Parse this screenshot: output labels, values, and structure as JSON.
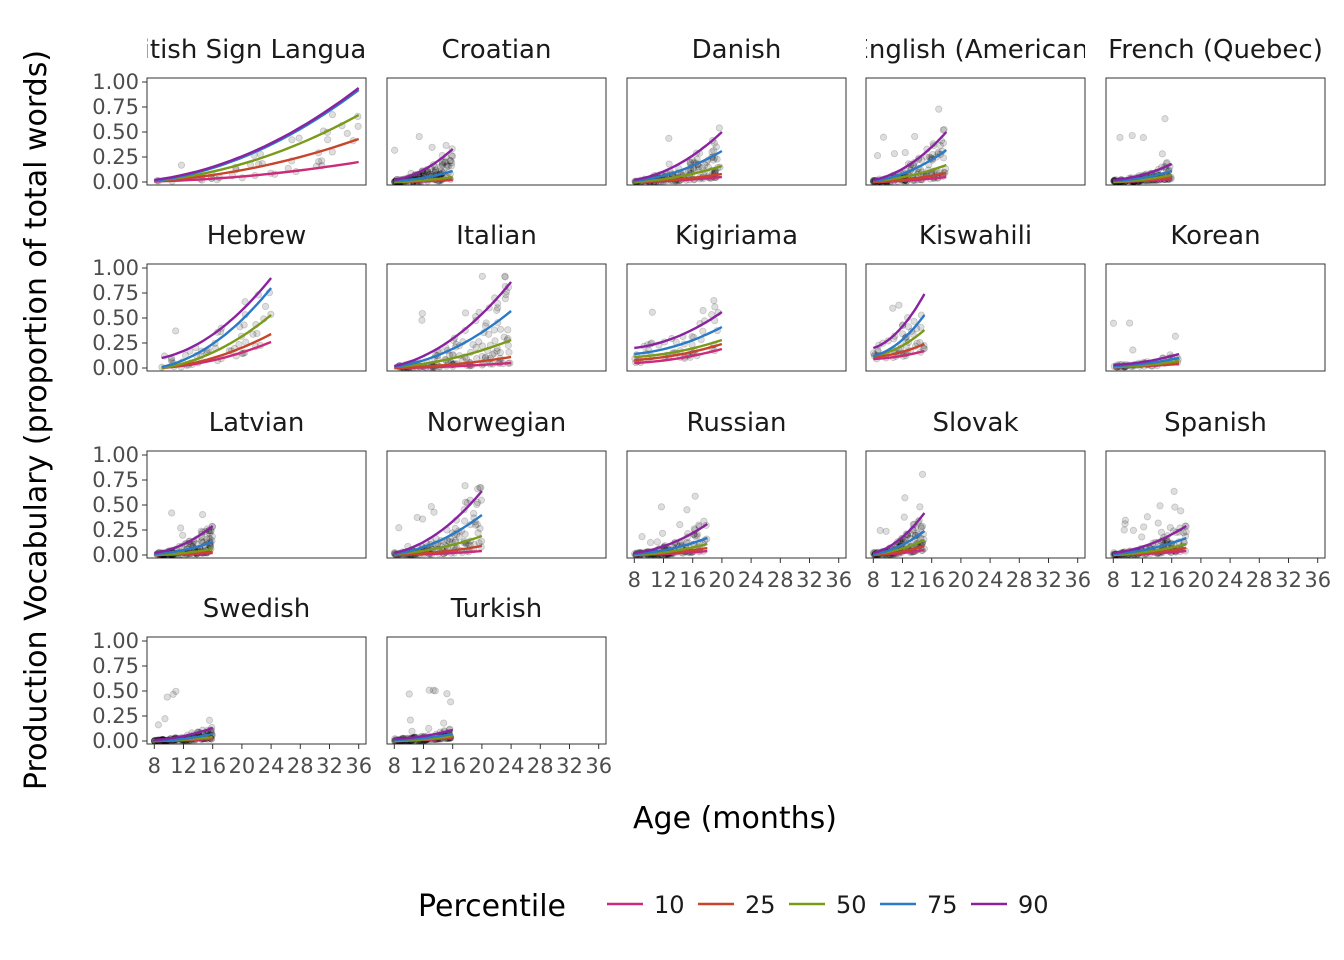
{
  "chart_data": {
    "type": "scatter",
    "xlabel": "Age (months)",
    "ylabel": "Production Vocabulary (proportion of total words)",
    "xlim": [
      7,
      37
    ],
    "ylim": [
      -0.03,
      1.04
    ],
    "x_ticks": [
      8,
      12,
      16,
      20,
      24,
      28,
      32,
      36
    ],
    "x_tick_labels": [
      "8",
      "12",
      "16",
      "20",
      "24",
      "28",
      "32",
      "36"
    ],
    "y_ticks": [
      0,
      0.25,
      0.5,
      0.75,
      1.0
    ],
    "y_tick_labels": [
      "0.00",
      "0.25",
      "0.50",
      "0.75",
      "1.00"
    ],
    "grid": false,
    "legend": {
      "title": "Percentile",
      "position": "bottom",
      "entries": [
        {
          "label": "10",
          "color": "#cc2a7a"
        },
        {
          "label": "25",
          "color": "#c8442a"
        },
        {
          "label": "50",
          "color": "#7a9a1a"
        },
        {
          "label": "75",
          "color": "#2a7ac8"
        },
        {
          "label": "90",
          "color": "#8a22a0"
        }
      ]
    },
    "point_color": "#000000",
    "panels": [
      {
        "title": "British Sign Language",
        "age_range": [
          8,
          36
        ],
        "data_note": "sparse points up to ~0.95",
        "curves": {
          "10": [
            0.005,
            0.2
          ],
          "25": [
            0.01,
            0.43
          ],
          "50": [
            0.01,
            0.67
          ],
          "75": [
            0.01,
            0.92
          ],
          "90": [
            0.02,
            0.94
          ]
        }
      },
      {
        "title": "Croatian",
        "age_range": [
          8,
          16
        ],
        "curves": {
          "10": [
            0.0,
            0.02
          ],
          "25": [
            0.0,
            0.03
          ],
          "50": [
            0.0,
            0.05
          ],
          "75": [
            0.01,
            0.11
          ],
          "90": [
            0.02,
            0.33
          ]
        }
      },
      {
        "title": "Danish",
        "age_range": [
          8,
          20
        ],
        "curves": {
          "10": [
            0.0,
            0.05
          ],
          "25": [
            0.0,
            0.08
          ],
          "50": [
            0.0,
            0.16
          ],
          "75": [
            0.01,
            0.31
          ],
          "90": [
            0.02,
            0.5
          ]
        }
      },
      {
        "title": "English (American)",
        "age_range": [
          8,
          18
        ],
        "curves": {
          "10": [
            0.0,
            0.05
          ],
          "25": [
            0.0,
            0.09
          ],
          "50": [
            0.01,
            0.17
          ],
          "75": [
            0.01,
            0.32
          ],
          "90": [
            0.02,
            0.5
          ]
        }
      },
      {
        "title": "French (Quebec)",
        "age_range": [
          8,
          16
        ],
        "curves": {
          "10": [
            0.0,
            0.03
          ],
          "25": [
            0.0,
            0.05
          ],
          "50": [
            0.0,
            0.07
          ],
          "75": [
            0.01,
            0.11
          ],
          "90": [
            0.02,
            0.18
          ]
        }
      },
      {
        "title": "Hebrew",
        "age_range": [
          9,
          24
        ],
        "curves": {
          "10": [
            0.0,
            0.26
          ],
          "25": [
            0.0,
            0.34
          ],
          "50": [
            0.0,
            0.53
          ],
          "75": [
            0.01,
            0.8
          ],
          "90": [
            0.1,
            0.9
          ]
        }
      },
      {
        "title": "Italian",
        "age_range": [
          8,
          24
        ],
        "curves": {
          "10": [
            0.0,
            0.05
          ],
          "25": [
            0.0,
            0.11
          ],
          "50": [
            0.01,
            0.28
          ],
          "75": [
            0.01,
            0.57
          ],
          "90": [
            0.02,
            0.86
          ]
        }
      },
      {
        "title": "Kigiriama",
        "age_range": [
          8,
          20
        ],
        "curves": {
          "10": [
            0.05,
            0.19
          ],
          "25": [
            0.08,
            0.24
          ],
          "50": [
            0.11,
            0.28
          ],
          "75": [
            0.14,
            0.41
          ],
          "90": [
            0.2,
            0.56
          ]
        }
      },
      {
        "title": "Kiswahili",
        "age_range": [
          8,
          15
        ],
        "curves": {
          "10": [
            0.09,
            0.17
          ],
          "25": [
            0.11,
            0.24
          ],
          "50": [
            0.12,
            0.38
          ],
          "75": [
            0.12,
            0.53
          ],
          "90": [
            0.2,
            0.74
          ]
        }
      },
      {
        "title": "Korean",
        "age_range": [
          8,
          17
        ],
        "curves": {
          "10": [
            0.01,
            0.04
          ],
          "25": [
            0.01,
            0.05
          ],
          "50": [
            0.01,
            0.07
          ],
          "75": [
            0.02,
            0.1
          ],
          "90": [
            0.03,
            0.14
          ]
        }
      },
      {
        "title": "Latvian",
        "age_range": [
          8,
          16
        ],
        "curves": {
          "10": [
            0.0,
            0.02
          ],
          "25": [
            0.0,
            0.03
          ],
          "50": [
            0.0,
            0.06
          ],
          "75": [
            0.01,
            0.13
          ],
          "90": [
            0.02,
            0.29
          ]
        }
      },
      {
        "title": "Norwegian",
        "age_range": [
          8,
          20
        ],
        "curves": {
          "10": [
            0.0,
            0.04
          ],
          "25": [
            0.0,
            0.09
          ],
          "50": [
            0.01,
            0.19
          ],
          "75": [
            0.01,
            0.4
          ],
          "90": [
            0.02,
            0.64
          ]
        }
      },
      {
        "title": "Russian",
        "age_range": [
          8,
          18
        ],
        "curves": {
          "10": [
            0.0,
            0.04
          ],
          "25": [
            0.0,
            0.07
          ],
          "50": [
            0.0,
            0.11
          ],
          "75": [
            0.01,
            0.17
          ],
          "90": [
            0.02,
            0.31
          ]
        }
      },
      {
        "title": "Slovak",
        "age_range": [
          8,
          15
        ],
        "curves": {
          "10": [
            0.0,
            0.05
          ],
          "25": [
            0.0,
            0.09
          ],
          "50": [
            0.01,
            0.15
          ],
          "75": [
            0.01,
            0.24
          ],
          "90": [
            0.02,
            0.42
          ]
        }
      },
      {
        "title": "Spanish",
        "age_range": [
          8,
          18
        ],
        "curves": {
          "10": [
            0.0,
            0.04
          ],
          "25": [
            0.0,
            0.07
          ],
          "50": [
            0.0,
            0.11
          ],
          "75": [
            0.01,
            0.17
          ],
          "90": [
            0.02,
            0.29
          ]
        }
      },
      {
        "title": "Swedish",
        "age_range": [
          8,
          16
        ],
        "curves": {
          "10": [
            0.0,
            0.02
          ],
          "25": [
            0.0,
            0.03
          ],
          "50": [
            0.0,
            0.04
          ],
          "75": [
            0.0,
            0.07
          ],
          "90": [
            0.01,
            0.13
          ]
        }
      },
      {
        "title": "Turkish",
        "age_range": [
          8,
          16
        ],
        "curves": {
          "10": [
            0.0,
            0.03
          ],
          "25": [
            0.0,
            0.04
          ],
          "50": [
            0.0,
            0.05
          ],
          "75": [
            0.01,
            0.07
          ],
          "90": [
            0.02,
            0.11
          ]
        }
      }
    ]
  }
}
